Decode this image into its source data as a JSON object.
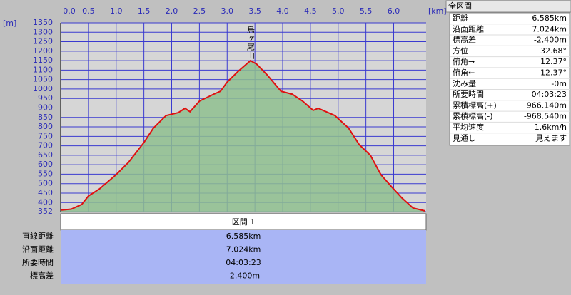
{
  "chart_data": {
    "type": "line",
    "xlabel": "[km]",
    "ylabel": "[m]",
    "annotation": "烏ヶ尾山",
    "annotation_x": 3.42,
    "color": "#e01010",
    "fill": "#8fc08f",
    "grid": true,
    "x": [
      0,
      0.19,
      0.38,
      0.5,
      0.7,
      1.0,
      1.22,
      1.5,
      1.67,
      1.9,
      2.12,
      2.24,
      2.33,
      2.5,
      2.76,
      2.88,
      3.0,
      3.2,
      3.42,
      3.53,
      3.72,
      3.97,
      4.17,
      4.36,
      4.55,
      4.64,
      4.94,
      5.19,
      5.38,
      5.58,
      5.77,
      5.96,
      6.15,
      6.35,
      6.56
    ],
    "values": [
      360,
      365,
      390,
      435,
      472,
      548,
      612,
      717,
      793,
      860,
      875,
      898,
      880,
      936,
      973,
      988,
      1037,
      1094,
      1150,
      1132,
      1075,
      988,
      973,
      936,
      887,
      898,
      860,
      793,
      706,
      650,
      548,
      484,
      424,
      371,
      356
    ],
    "xlim": [
      0,
      6.585
    ],
    "xticks": [
      {
        "value": 0,
        "label": "0.0"
      },
      0.5,
      {
        "value": 1,
        "label": "1.0"
      },
      1.5,
      {
        "value": 2,
        "label": "2.0"
      },
      2.5,
      {
        "value": 3,
        "label": "3.0"
      },
      3.5,
      {
        "value": 4,
        "label": "4.0"
      },
      4.5,
      {
        "value": 5,
        "label": "5.0"
      },
      5.5,
      {
        "value": 6,
        "label": "6.0"
      }
    ],
    "ylim": [
      352,
      1350
    ],
    "yticks": [
      352,
      400,
      450,
      500,
      550,
      600,
      650,
      700,
      750,
      800,
      850,
      900,
      950,
      1000,
      1050,
      1100,
      1150,
      1200,
      1250,
      1300,
      1350
    ]
  },
  "summary": {
    "title": "全区間",
    "rows": [
      [
        "距離",
        "6.585km"
      ],
      [
        "沿面距離",
        "7.024km"
      ],
      [
        "標高差",
        "-2.400m"
      ],
      [
        "方位",
        "32.68°"
      ],
      [
        "俯角→",
        "12.37°"
      ],
      [
        "俯角←",
        "-12.37°"
      ],
      [
        "沈み量",
        "-0m"
      ],
      [
        "所要時間",
        "04:03:23"
      ],
      [
        "累積標高(+)",
        "966.140m"
      ],
      [
        "累積標高(-)",
        "-968.540m"
      ],
      [
        "平均速度",
        "1.6km/h"
      ],
      [
        "見通し",
        "見えます"
      ]
    ]
  },
  "section": {
    "title": "区間 1",
    "rows": [
      [
        "直線距離",
        "6.585km"
      ],
      [
        "沿面距離",
        "7.024km"
      ],
      [
        "所要時間",
        "04:03:23"
      ],
      [
        "標高差",
        "-2.400m"
      ]
    ]
  }
}
